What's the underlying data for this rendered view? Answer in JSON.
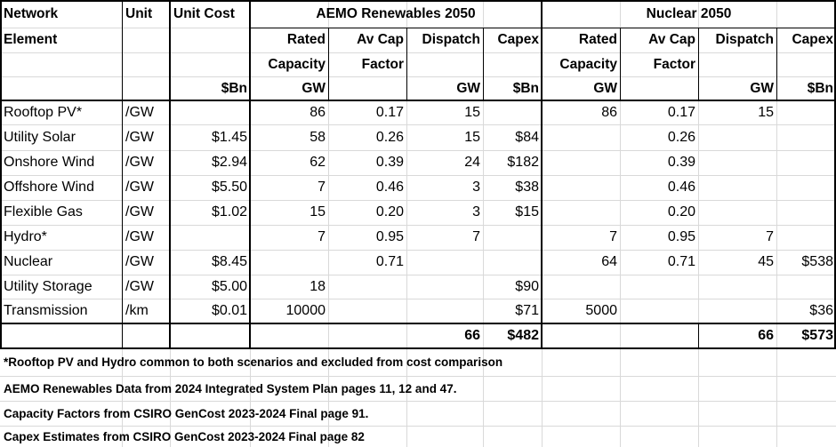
{
  "headers": {
    "network_line1": "Network",
    "network_line2": "Element",
    "unit": "Unit",
    "unit_cost": "Unit Cost",
    "unit_cost_units": "$Bn",
    "scenario_aemo": "AEMO Renewables 2050",
    "scenario_nuclear": "Nuclear 2050",
    "sub": {
      "rated_line1": "Rated",
      "rated_line2": "Capacity",
      "rated_units": "GW",
      "avcap_line1": "Av Cap",
      "avcap_line2": "Factor",
      "dispatch": "Dispatch",
      "dispatch_units": "GW",
      "capex": "Capex",
      "capex_units": "$Bn"
    }
  },
  "rows": [
    {
      "element": "Rooftop PV*",
      "unit": "/GW",
      "cost": "",
      "a_rated": "86",
      "a_cf": "0.17",
      "a_disp": "15",
      "a_capex": "",
      "n_rated": "86",
      "n_cf": "0.17",
      "n_disp": "15",
      "n_capex": ""
    },
    {
      "element": "Utility Solar",
      "unit": "/GW",
      "cost": "$1.45",
      "a_rated": "58",
      "a_cf": "0.26",
      "a_disp": "15",
      "a_capex": "$84",
      "n_rated": "",
      "n_cf": "0.26",
      "n_disp": "",
      "n_capex": ""
    },
    {
      "element": "Onshore Wind",
      "unit": "/GW",
      "cost": "$2.94",
      "a_rated": "62",
      "a_cf": "0.39",
      "a_disp": "24",
      "a_capex": "$182",
      "n_rated": "",
      "n_cf": "0.39",
      "n_disp": "",
      "n_capex": ""
    },
    {
      "element": "Offshore Wind",
      "unit": "/GW",
      "cost": "$5.50",
      "a_rated": "7",
      "a_cf": "0.46",
      "a_disp": "3",
      "a_capex": "$38",
      "n_rated": "",
      "n_cf": "0.46",
      "n_disp": "",
      "n_capex": ""
    },
    {
      "element": "Flexible Gas",
      "unit": "/GW",
      "cost": "$1.02",
      "a_rated": "15",
      "a_cf": "0.20",
      "a_disp": "3",
      "a_capex": "$15",
      "n_rated": "",
      "n_cf": "0.20",
      "n_disp": "",
      "n_capex": ""
    },
    {
      "element": "Hydro*",
      "unit": "/GW",
      "cost": "",
      "a_rated": "7",
      "a_cf": "0.95",
      "a_disp": "7",
      "a_capex": "",
      "n_rated": "7",
      "n_cf": "0.95",
      "n_disp": "7",
      "n_capex": ""
    },
    {
      "element": "Nuclear",
      "unit": "/GW",
      "cost": "$8.45",
      "a_rated": "",
      "a_cf": "0.71",
      "a_disp": "",
      "a_capex": "",
      "n_rated": "64",
      "n_cf": "0.71",
      "n_disp": "45",
      "n_capex": "$538"
    },
    {
      "element": "Utility Storage",
      "unit": "/GW",
      "cost": "$5.00",
      "a_rated": "18",
      "a_cf": "",
      "a_disp": "",
      "a_capex": "$90",
      "n_rated": "",
      "n_cf": "",
      "n_disp": "",
      "n_capex": ""
    },
    {
      "element": "Transmission",
      "unit": "/km",
      "cost": "$0.01",
      "a_rated": "10000",
      "a_cf": "",
      "a_disp": "",
      "a_capex": "$71",
      "n_rated": "5000",
      "n_cf": "",
      "n_disp": "",
      "n_capex": "$36"
    }
  ],
  "totals": {
    "a_disp": "66",
    "a_capex": "$482",
    "n_disp": "66",
    "n_capex": "$573"
  },
  "notes": [
    "*Rooftop PV and Hydro common to both scenarios and excluded from cost comparison",
    "AEMO Renewables Data from 2024 Integrated System Plan pages 11, 12 and 47.",
    "Capacity Factors from CSIRO GenCost 2023-2024 Final page 91.",
    "Capex Estimates from CSIRO GenCost 2023-2024 Final page 82"
  ]
}
